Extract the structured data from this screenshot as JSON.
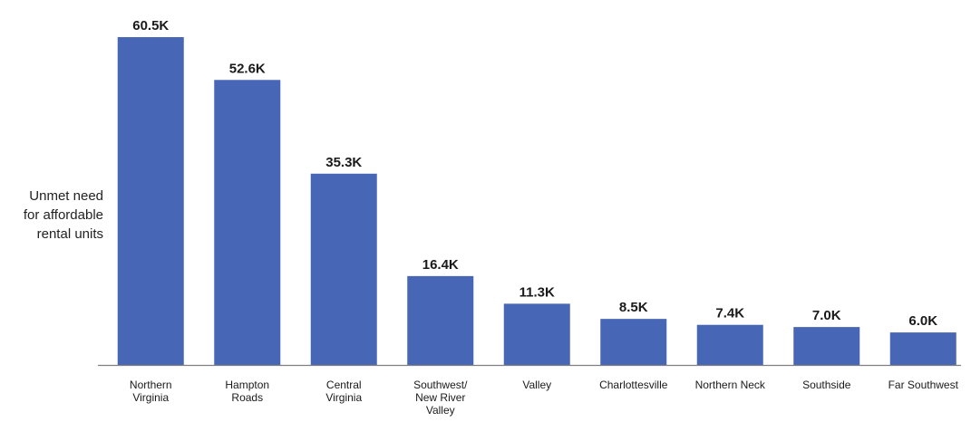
{
  "chart_data": {
    "type": "bar",
    "title": "",
    "xlabel": "",
    "ylabel": "Unmet need for affordable rental units",
    "ylabel_lines": [
      "Unmet need",
      "for affordable",
      "rental units"
    ],
    "categories": [
      "Northern Virginia",
      "Hampton Roads",
      "Central Virginia",
      "Southwest/ New River Valley",
      "Valley",
      "Charlottesville",
      "Northern Neck",
      "Southside",
      "Far Southwest"
    ],
    "category_lines": [
      [
        "Northern",
        "Virginia"
      ],
      [
        "Hampton",
        "Roads"
      ],
      [
        "Central",
        "Virginia"
      ],
      [
        "Southwest/",
        "New River",
        "Valley"
      ],
      [
        "Valley"
      ],
      [
        "Charlottesville"
      ],
      [
        "Northern Neck"
      ],
      [
        "Southside"
      ],
      [
        "Far Southwest"
      ]
    ],
    "values": [
      60.5,
      52.6,
      35.3,
      16.4,
      11.3,
      8.5,
      7.4,
      7.0,
      6.0
    ],
    "value_labels": [
      "60.5K",
      "52.6K",
      "35.3K",
      "16.4K",
      "11.3K",
      "8.5K",
      "7.4K",
      "7.0K",
      "6.0K"
    ],
    "unit": "thousand units",
    "ylim": [
      0,
      60.5
    ],
    "grid": false,
    "legend": "none",
    "bar_color": "#4766b5",
    "axis_color": "#7f7f7f"
  }
}
